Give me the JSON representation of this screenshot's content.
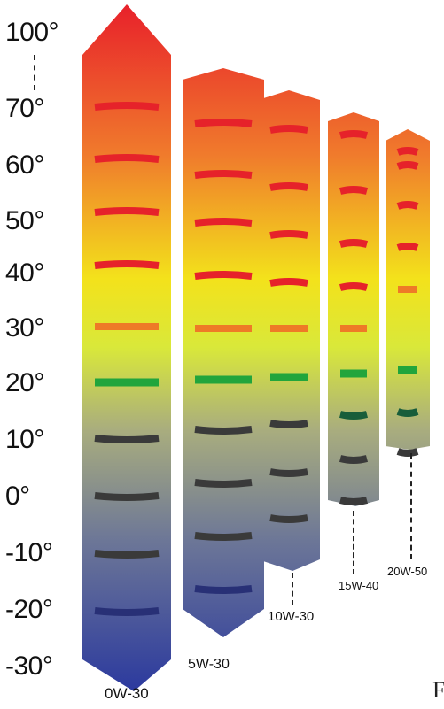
{
  "axis_labels": [
    "100°",
    "70°",
    "60°",
    "50°",
    "40°",
    "30°",
    "20°",
    "10°",
    "0°",
    "-10°",
    "-20°",
    "-30°"
  ],
  "columns": [
    {
      "name": "0W-30"
    },
    {
      "name": "5W-30"
    },
    {
      "name": "10W-30"
    },
    {
      "name": "15W-40"
    },
    {
      "name": "20W-50"
    }
  ],
  "footer_mark": "F",
  "colors": {
    "top": "#e8212b",
    "orange": "#f07b2c",
    "yellow": "#f3e21b",
    "green_yellow": "#d9e83a",
    "olive": "#a9ad7e",
    "slate": "#6d7797",
    "blue": "#2c3a9e",
    "band_red": "#e6222a",
    "band_orange": "#ee7a27",
    "band_green": "#21a53c",
    "band_darkgreen": "#185d3a",
    "band_dark": "#3a3a3a",
    "band_navy": "#283076"
  }
}
